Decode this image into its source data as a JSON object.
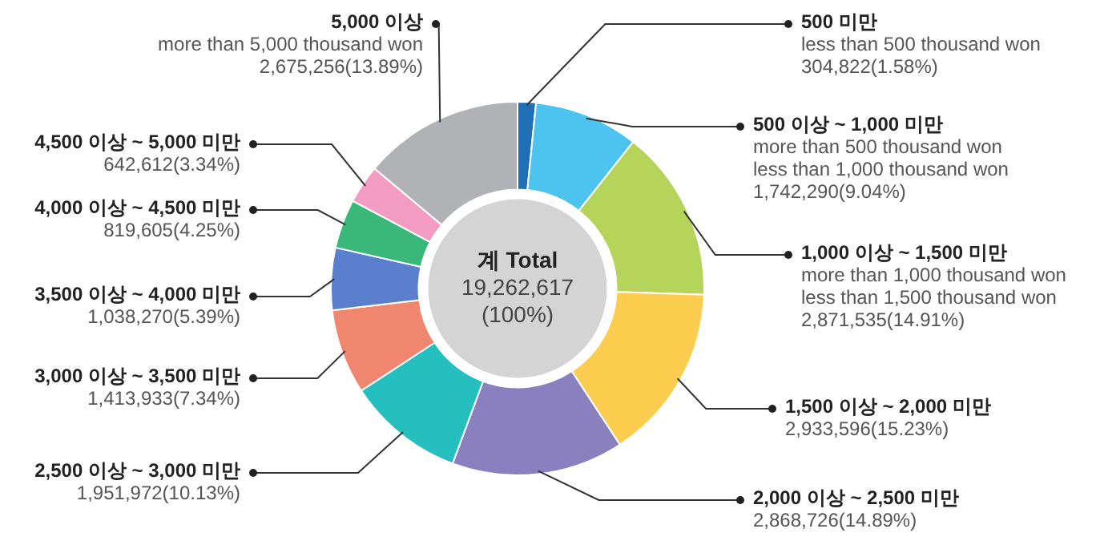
{
  "chart_data": {
    "type": "donut",
    "categories": [
      "500 미만\nless than 500 thousand won",
      "500 이상 ~ 1,000 미만\nmore than 500 thousand won\nless than 1,000 thousand won",
      "1,000 이상 ~ 1,500 미만\nmore than 1,000 thousand won\nless than 1,500 thousand won",
      "1,500 이상 ~ 2,000 미만",
      "2,000 이상 ~ 2,500 미만",
      "2,500 이상 ~ 3,000 미만",
      "3,000 이상 ~ 3,500 미만",
      "3,500 이상 ~ 4,000 미만",
      "4,000 이상 ~ 4,500 미만",
      "4,500 이상 ~ 5,000 미만",
      "5,000 이상\nmore than 5,000 thousand won"
    ],
    "values": [
      304822,
      1742290,
      2871535,
      2933596,
      2868726,
      1951972,
      1413933,
      1038270,
      819605,
      642612,
      2675256
    ],
    "value_labels": [
      "304,822(1.58%)",
      "1,742,290(9.04%)",
      "2,871,535(14.91%)",
      "2,933,596(15.23%)",
      "2,868,726(14.89%)",
      "1,951,972(10.13%)",
      "1,413,933(7.34%)",
      "1,038,270(5.39%)",
      "819,605(4.25%)",
      "642,612(3.34%)",
      "2,675,256(13.89%)"
    ],
    "colors": [
      "#1f6fb5",
      "#4dc3ef",
      "#b5d55a",
      "#fdcd4f",
      "#8a80c0",
      "#26bfbf",
      "#f08670",
      "#5a7fcc",
      "#3ab87a",
      "#f29cc4",
      "#b0b2b5"
    ],
    "annotations": [
      "계 Total",
      "19,262,617",
      "(100%)"
    ]
  }
}
